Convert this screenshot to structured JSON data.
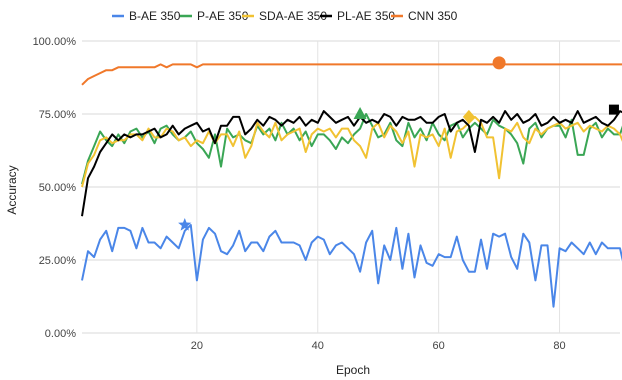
{
  "chart_data": {
    "type": "line",
    "title": "",
    "xlabel": "Epoch",
    "ylabel": "Accuracy",
    "xlim": [
      0,
      90
    ],
    "ylim": [
      0,
      1
    ],
    "x_ticks": [
      20,
      40,
      60,
      80
    ],
    "y_ticks": [
      0,
      0.25,
      0.5,
      0.75,
      1.0
    ],
    "y_tick_labels": [
      "0.00%",
      "25.00%",
      "50.00%",
      "75.00%",
      "100.00%"
    ],
    "grid": true,
    "legend_position": "top",
    "series": [
      {
        "name": "B-AE 350",
        "color": "#4a86e8",
        "values": [
          0.18,
          0.28,
          0.26,
          0.32,
          0.35,
          0.28,
          0.36,
          0.36,
          0.35,
          0.29,
          0.36,
          0.31,
          0.31,
          0.29,
          0.33,
          0.31,
          0.29,
          0.35,
          0.37,
          0.18,
          0.32,
          0.36,
          0.34,
          0.28,
          0.27,
          0.3,
          0.35,
          0.28,
          0.31,
          0.31,
          0.28,
          0.33,
          0.35,
          0.31,
          0.31,
          0.31,
          0.3,
          0.25,
          0.31,
          0.33,
          0.32,
          0.27,
          0.3,
          0.31,
          0.29,
          0.27,
          0.21,
          0.31,
          0.35,
          0.17,
          0.3,
          0.25,
          0.36,
          0.22,
          0.34,
          0.19,
          0.3,
          0.24,
          0.23,
          0.27,
          0.26,
          0.26,
          0.33,
          0.25,
          0.21,
          0.21,
          0.32,
          0.22,
          0.34,
          0.33,
          0.34,
          0.26,
          0.22,
          0.34,
          0.31,
          0.18,
          0.3,
          0.3,
          0.09,
          0.29,
          0.28,
          0.31,
          0.29,
          0.27,
          0.31,
          0.27,
          0.31,
          0.29,
          0.29,
          0.29,
          0.2
        ]
      },
      {
        "name": "P-AE 350",
        "color": "#3aa655",
        "values": [
          0.51,
          0.59,
          0.64,
          0.69,
          0.66,
          0.64,
          0.68,
          0.65,
          0.69,
          0.7,
          0.67,
          0.69,
          0.65,
          0.7,
          0.71,
          0.68,
          0.66,
          0.67,
          0.69,
          0.65,
          0.63,
          0.6,
          0.68,
          0.57,
          0.7,
          0.67,
          0.68,
          0.66,
          0.65,
          0.71,
          0.68,
          0.7,
          0.66,
          0.72,
          0.68,
          0.7,
          0.66,
          0.69,
          0.64,
          0.68,
          0.68,
          0.66,
          0.63,
          0.67,
          0.65,
          0.68,
          0.7,
          0.75,
          0.71,
          0.67,
          0.68,
          0.72,
          0.66,
          0.64,
          0.72,
          0.67,
          0.7,
          0.66,
          0.72,
          0.68,
          0.66,
          0.71,
          0.72,
          0.67,
          0.7,
          0.72,
          0.7,
          0.68,
          0.73,
          0.71,
          0.7,
          0.68,
          0.65,
          0.58,
          0.7,
          0.72,
          0.67,
          0.7,
          0.71,
          0.71,
          0.67,
          0.73,
          0.61,
          0.61,
          0.7,
          0.72,
          0.67,
          0.7,
          0.68,
          0.68,
          0.74
        ]
      },
      {
        "name": "SDA-AE 350",
        "color": "#f1c232",
        "values": [
          0.5,
          0.58,
          0.61,
          0.66,
          0.67,
          0.65,
          0.66,
          0.66,
          0.68,
          0.68,
          0.66,
          0.7,
          0.67,
          0.67,
          0.7,
          0.69,
          0.66,
          0.67,
          0.64,
          0.66,
          0.65,
          0.69,
          0.65,
          0.68,
          0.68,
          0.64,
          0.69,
          0.6,
          0.64,
          0.72,
          0.69,
          0.67,
          0.72,
          0.66,
          0.68,
          0.69,
          0.7,
          0.62,
          0.68,
          0.7,
          0.69,
          0.7,
          0.67,
          0.7,
          0.7,
          0.66,
          0.64,
          0.6,
          0.7,
          0.72,
          0.67,
          0.71,
          0.69,
          0.65,
          0.69,
          0.57,
          0.68,
          0.67,
          0.68,
          0.64,
          0.7,
          0.6,
          0.69,
          0.7,
          0.72,
          0.74,
          0.72,
          0.67,
          0.67,
          0.53,
          0.7,
          0.69,
          0.72,
          0.67,
          0.65,
          0.7,
          0.68,
          0.7,
          0.71,
          0.72,
          0.7,
          0.71,
          0.72,
          0.69,
          0.71,
          0.7,
          0.69,
          0.71,
          0.7,
          0.68,
          0.63
        ]
      },
      {
        "name": "PL-AE 350",
        "color": "#000000",
        "values": [
          0.4,
          0.53,
          0.57,
          0.62,
          0.65,
          0.68,
          0.66,
          0.68,
          0.67,
          0.68,
          0.68,
          0.69,
          0.7,
          0.67,
          0.68,
          0.71,
          0.68,
          0.7,
          0.71,
          0.72,
          0.69,
          0.7,
          0.65,
          0.71,
          0.71,
          0.74,
          0.74,
          0.68,
          0.7,
          0.73,
          0.71,
          0.74,
          0.73,
          0.71,
          0.73,
          0.72,
          0.74,
          0.71,
          0.73,
          0.72,
          0.76,
          0.74,
          0.72,
          0.73,
          0.74,
          0.71,
          0.74,
          0.72,
          0.73,
          0.72,
          0.75,
          0.74,
          0.71,
          0.74,
          0.73,
          0.73,
          0.74,
          0.72,
          0.72,
          0.74,
          0.75,
          0.69,
          0.72,
          0.73,
          0.71,
          0.62,
          0.73,
          0.72,
          0.74,
          0.72,
          0.76,
          0.73,
          0.75,
          0.72,
          0.73,
          0.75,
          0.71,
          0.72,
          0.74,
          0.72,
          0.73,
          0.72,
          0.76,
          0.72,
          0.73,
          0.74,
          0.72,
          0.71,
          0.73,
          0.76,
          0.75
        ]
      },
      {
        "name": "CNN 350",
        "color": "#f0782a",
        "values": [
          0.85,
          0.87,
          0.88,
          0.89,
          0.9,
          0.9,
          0.91,
          0.91,
          0.91,
          0.91,
          0.91,
          0.91,
          0.91,
          0.92,
          0.91,
          0.92,
          0.92,
          0.92,
          0.92,
          0.91,
          0.92,
          0.92,
          0.92,
          0.92,
          0.92,
          0.92,
          0.92,
          0.92,
          0.92,
          0.92,
          0.92,
          0.92,
          0.92,
          0.92,
          0.92,
          0.92,
          0.92,
          0.92,
          0.92,
          0.92,
          0.92,
          0.92,
          0.92,
          0.92,
          0.92,
          0.92,
          0.92,
          0.92,
          0.92,
          0.92,
          0.92,
          0.92,
          0.92,
          0.92,
          0.92,
          0.92,
          0.92,
          0.92,
          0.92,
          0.92,
          0.92,
          0.92,
          0.92,
          0.92,
          0.92,
          0.92,
          0.92,
          0.92,
          0.92,
          0.92,
          0.92,
          0.92,
          0.92,
          0.92,
          0.92,
          0.92,
          0.92,
          0.92,
          0.92,
          0.92,
          0.92,
          0.92,
          0.92,
          0.92,
          0.92,
          0.92,
          0.92,
          0.92,
          0.92,
          0.92,
          0.92
        ]
      }
    ],
    "markers": [
      {
        "series": "B-AE 350",
        "shape": "star",
        "x": 18,
        "y": 0.37
      },
      {
        "series": "P-AE 350",
        "shape": "triangle",
        "x": 47,
        "y": 0.75
      },
      {
        "series": "SDA-AE 350",
        "shape": "diamond",
        "x": 65,
        "y": 0.74
      },
      {
        "series": "PL-AE 350",
        "shape": "square",
        "x": 89,
        "y": 0.765
      },
      {
        "series": "CNN 350",
        "shape": "circle",
        "x": 70,
        "y": 0.925
      }
    ]
  }
}
